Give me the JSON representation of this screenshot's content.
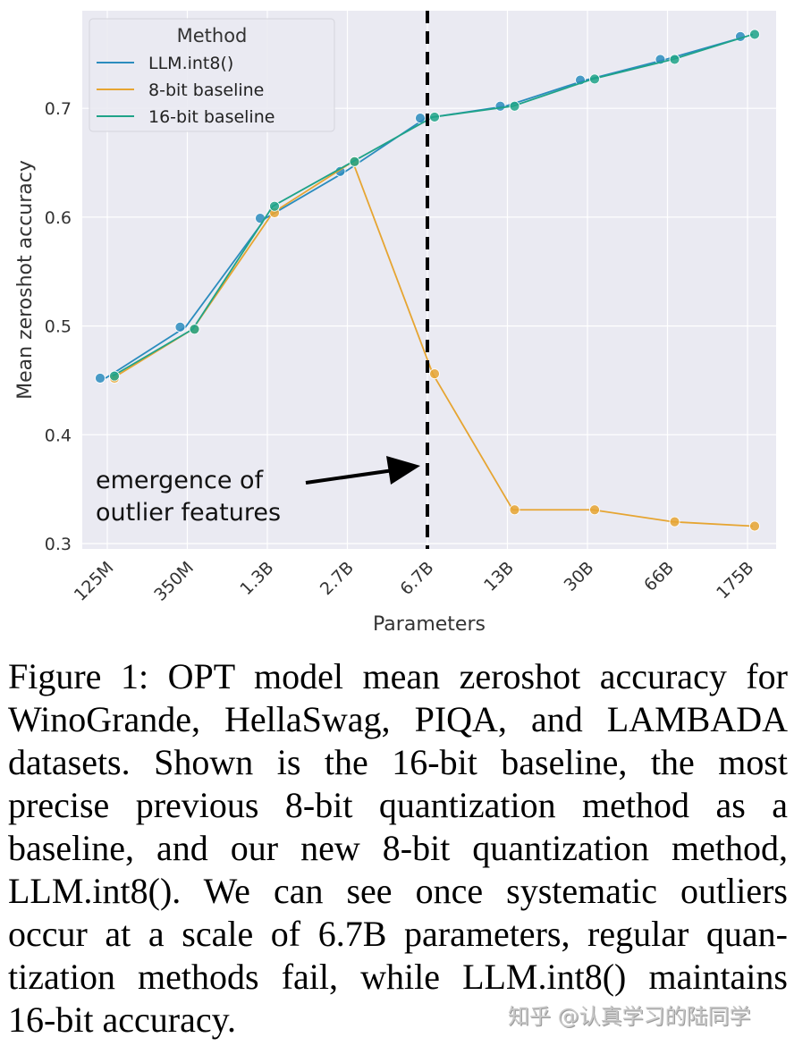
{
  "chart_data": {
    "type": "line",
    "xlabel": "Parameters",
    "ylabel": "Mean zeroshot accuracy",
    "categories": [
      "125M",
      "350M",
      "1.3B",
      "2.7B",
      "6.7B",
      "13B",
      "30B",
      "66B",
      "175B"
    ],
    "yticks": [
      0.3,
      0.4,
      0.5,
      0.6,
      0.7
    ],
    "ylim": [
      0.295,
      0.79
    ],
    "grid": true,
    "legend": {
      "title": "Method",
      "placement": "top-left"
    },
    "series": [
      {
        "name": "LLM.int8()",
        "color": "#2b8cbe",
        "values": [
          0.452,
          0.499,
          0.599,
          0.642,
          0.691,
          0.702,
          0.726,
          0.745,
          0.766
        ]
      },
      {
        "name": "8-bit baseline",
        "color": "#e6a532",
        "values": [
          0.452,
          0.497,
          0.604,
          0.651,
          0.456,
          0.331,
          0.331,
          0.32,
          0.316
        ]
      },
      {
        "name": "16-bit baseline",
        "color": "#1fa388",
        "values": [
          0.454,
          0.497,
          0.61,
          0.651,
          0.692,
          0.702,
          0.727,
          0.745,
          0.768
        ]
      }
    ],
    "annotation": {
      "lines": [
        "emergence of",
        "outlier features"
      ],
      "marker_category": "6.7B"
    }
  },
  "caption": {
    "lines": [
      "Figure 1: OPT model mean zeroshot accuracy for",
      "WinoGrande, HellaSwag, PIQA, and LAMBADA",
      "datasets.  Shown is the 16-bit baseline, the most",
      "precise previous 8-bit quantization method as a",
      "baseline, and our new 8-bit quantization method,",
      "LLM.int8(). We can see once systematic outliers",
      "occur at a scale of 6.7B parameters, regular quan-",
      "tization methods fail, while LLM.int8() maintains",
      "16-bit accuracy."
    ]
  },
  "watermark": "知乎 @认真学习的陆同学"
}
